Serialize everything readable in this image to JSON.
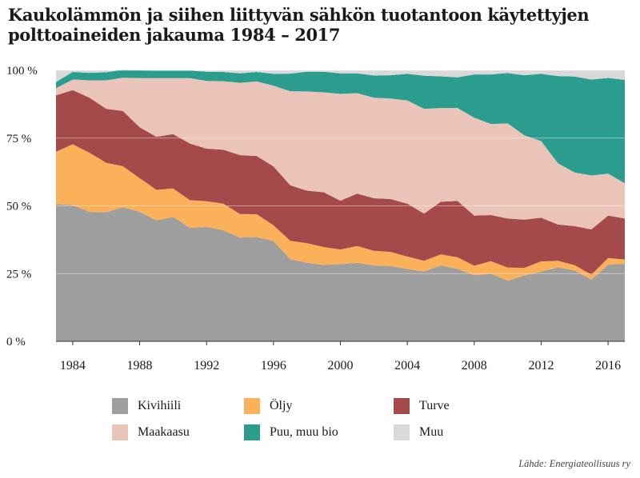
{
  "title": "Kaukolämmön ja siihen liittyvän sähkön tuotantoon käytettyjen polttoaineiden jakauma 1984 – 2017",
  "source": "Lähde: Energiateollisuus ry",
  "chart_data": {
    "type": "area",
    "stacked": true,
    "x": [
      1983,
      1984,
      1985,
      1986,
      1987,
      1988,
      1989,
      1990,
      1991,
      1992,
      1993,
      1994,
      1995,
      1996,
      1997,
      1998,
      1999,
      2000,
      2001,
      2002,
      2003,
      2004,
      2005,
      2006,
      2007,
      2008,
      2009,
      2010,
      2011,
      2012,
      2013,
      2014,
      2015,
      2016,
      2017
    ],
    "x_ticks": [
      "1984",
      "1988",
      "1992",
      "1996",
      "2000",
      "2004",
      "2008",
      "2012",
      "2016"
    ],
    "x_tick_values": [
      1984,
      1988,
      1992,
      1996,
      2000,
      2004,
      2008,
      2012,
      2016
    ],
    "y_ticks": [
      "0 %",
      "25 %",
      "50 %",
      "75 %",
      "100 %"
    ],
    "y_tick_values": [
      0,
      25,
      50,
      75,
      100
    ],
    "ylim": [
      0,
      100
    ],
    "grid": "horizontal",
    "legend_position": "bottom",
    "series": [
      {
        "name": "Kivihiili",
        "color": "#9e9e9e",
        "values": [
          50.7,
          50.2,
          47.8,
          47.6,
          49.5,
          47.8,
          44.6,
          45.9,
          41.9,
          42.2,
          41.0,
          38.3,
          38.5,
          37.0,
          30.3,
          29.0,
          28.2,
          28.5,
          29.0,
          28.0,
          27.8,
          26.7,
          25.8,
          28.0,
          26.7,
          24.4,
          25.0,
          22.4,
          24.3,
          25.7,
          27.3,
          26.1,
          22.8,
          28.3,
          28.6
        ]
      },
      {
        "name": "Öljy",
        "color": "#fbb05a",
        "values": [
          19.3,
          22.5,
          21.8,
          18.3,
          15.1,
          12.4,
          11.3,
          10.5,
          10.2,
          9.5,
          9.8,
          8.7,
          8.4,
          5.8,
          6.8,
          7.2,
          6.6,
          5.4,
          6.2,
          5.4,
          5.2,
          4.6,
          3.9,
          4.1,
          4.3,
          3.5,
          4.6,
          4.8,
          2.8,
          3.8,
          2.4,
          2.0,
          1.8,
          2.4,
          1.6
        ]
      },
      {
        "name": "Turve",
        "color": "#a44a4a",
        "values": [
          20.8,
          20.0,
          20.3,
          19.9,
          20.4,
          18.8,
          19.6,
          20.1,
          20.9,
          19.4,
          19.9,
          21.7,
          21.5,
          21.7,
          20.5,
          19.4,
          20.2,
          18.0,
          19.3,
          19.4,
          19.5,
          19.5,
          17.4,
          19.4,
          20.8,
          18.5,
          17.0,
          18.1,
          17.8,
          16.1,
          13.4,
          14.4,
          16.7,
          15.7,
          15.1
        ]
      },
      {
        "name": "Maakaasu",
        "color": "#ebc4b9",
        "values": [
          2.6,
          3.9,
          6.4,
          10.5,
          12.3,
          18.1,
          21.6,
          20.6,
          24.1,
          25.0,
          25.3,
          26.7,
          27.5,
          29.8,
          34.7,
          36.6,
          36.9,
          39.4,
          37.1,
          37.1,
          37.1,
          38.1,
          38.7,
          34.6,
          34.3,
          36.1,
          33.6,
          35.1,
          31.1,
          28.3,
          22.6,
          19.8,
          19.9,
          15.5,
          13.0
        ]
      },
      {
        "name": "Puu, muu bio",
        "color": "#2a9d8f",
        "values": [
          2.3,
          2.8,
          2.8,
          3.0,
          2.9,
          2.9,
          2.8,
          2.8,
          2.8,
          3.4,
          3.4,
          3.5,
          3.5,
          4.4,
          6.5,
          7.3,
          7.6,
          7.6,
          7.3,
          8.2,
          8.6,
          9.8,
          12.2,
          11.7,
          11.3,
          16.0,
          18.3,
          18.6,
          22.2,
          24.8,
          32.2,
          35.4,
          35.4,
          35.3,
          38.2
        ]
      },
      {
        "name": "Muu",
        "color": "#d9d9d9",
        "values": [
          4.3,
          0.6,
          0.9,
          0.7,
          -0.2,
          0.0,
          0.1,
          0.1,
          0.1,
          0.5,
          0.6,
          1.1,
          0.6,
          1.3,
          1.2,
          0.5,
          0.5,
          1.1,
          1.1,
          1.9,
          1.8,
          1.3,
          2.0,
          2.2,
          2.6,
          1.5,
          1.5,
          1.0,
          1.8,
          1.3,
          2.1,
          2.3,
          3.4,
          2.8,
          3.5
        ]
      }
    ]
  }
}
